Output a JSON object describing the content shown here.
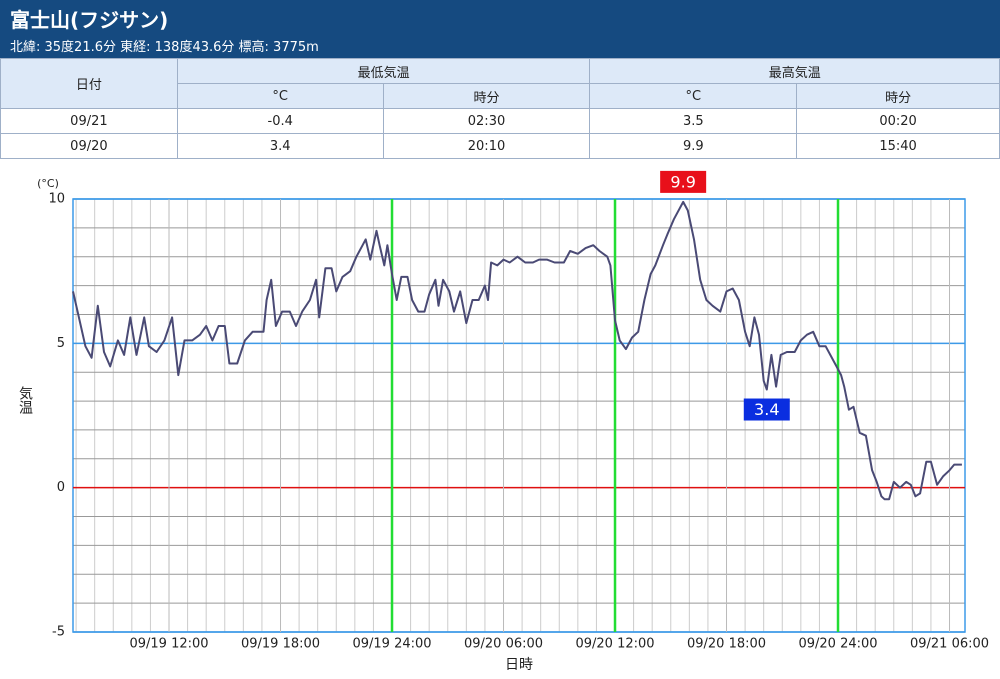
{
  "header": {
    "title": "富士山(フジサン)",
    "subtitle": "北緯: 35度21.6分 東経: 138度43.6分 標高: 3775m"
  },
  "table": {
    "headers": [
      "日付",
      "最低気温",
      "最高気温"
    ],
    "subheaders": [
      "°C",
      "時分",
      "°C",
      "時分"
    ],
    "rows": [
      [
        "09/21",
        -0.4,
        "02:30",
        3.5,
        "00:20"
      ],
      [
        "09/20",
        3.4,
        "20:10",
        9.9,
        "15:40"
      ]
    ]
  },
  "chart_data": {
    "type": "line",
    "y_unit": "(°C)",
    "ylabel": "気温",
    "xlabel": "日時",
    "color": "#4a4a75",
    "xlim": [
      "09/19 06:50",
      "09/21 06:50"
    ],
    "xticks": [
      "09/19 12:00",
      "09/19 18:00",
      "09/19 24:00",
      "09/20 06:00",
      "09/20 12:00",
      "09/20 18:00",
      "09/20 24:00",
      "09/21 06:00"
    ],
    "highlight_xticks": [
      2,
      4,
      6
    ],
    "highlight_color": "#22dd33",
    "ylim": [
      -5,
      10
    ],
    "yticks": [
      -5,
      0,
      5,
      10
    ],
    "major_grid_color": "#3d9ae8",
    "zero_color": "#e01010",
    "grid": true,
    "max_label": {
      "x": "09/20 15:40",
      "value": 9.9,
      "color": "#e8101a"
    },
    "min_label": {
      "x": "09/20 20:10",
      "value": 3.4,
      "color": "#0a2ee0"
    },
    "x": [
      "09/19 06:50",
      "09/19 07:05",
      "09/19 07:30",
      "09/19 07:50",
      "09/19 08:10",
      "09/19 08:30",
      "09/19 08:50",
      "09/19 09:15",
      "09/19 09:35",
      "09/19 09:55",
      "09/19 10:15",
      "09/19 10:40",
      "09/19 10:55",
      "09/19 11:20",
      "09/19 11:45",
      "09/19 12:10",
      "09/19 12:30",
      "09/19 12:50",
      "09/19 13:15",
      "09/19 13:40",
      "09/19 14:00",
      "09/19 14:20",
      "09/19 14:40",
      "09/19 15:00",
      "09/19 15:15",
      "09/19 15:40",
      "09/19 16:05",
      "09/19 16:30",
      "09/19 16:50",
      "09/19 17:05",
      "09/19 17:15",
      "09/19 17:30",
      "09/19 17:45",
      "09/19 18:05",
      "09/19 18:30",
      "09/19 18:50",
      "09/19 19:10",
      "09/19 19:35",
      "09/19 19:55",
      "09/19 20:05",
      "09/19 20:25",
      "09/19 20:45",
      "09/19 21:00",
      "09/19 21:20",
      "09/19 21:45",
      "09/19 22:05",
      "09/19 22:25",
      "09/19 22:35",
      "09/19 22:50",
      "09/19 23:10",
      "09/19 23:20",
      "09/19 23:35",
      "09/19 23:45",
      "09/20 00:00",
      "09/20 00:15",
      "09/20 00:30",
      "09/20 00:50",
      "09/20 01:05",
      "09/20 01:25",
      "09/20 01:45",
      "09/20 02:00",
      "09/20 02:20",
      "09/20 02:30",
      "09/20 02:45",
      "09/20 03:05",
      "09/20 03:20",
      "09/20 03:40",
      "09/20 04:00",
      "09/20 04:20",
      "09/20 04:40",
      "09/20 05:00",
      "09/20 05:10",
      "09/20 05:20",
      "09/20 05:40",
      "09/20 06:00",
      "09/20 06:20",
      "09/20 06:45",
      "09/20 07:10",
      "09/20 07:35",
      "09/20 07:55",
      "09/20 08:20",
      "09/20 08:45",
      "09/20 09:15",
      "09/20 09:35",
      "09/20 10:00",
      "09/20 10:25",
      "09/20 10:50",
      "09/20 11:10",
      "09/20 11:35",
      "09/20 11:45",
      "09/20 12:00",
      "09/20 12:15",
      "09/20 12:35",
      "09/20 12:55",
      "09/20 13:15",
      "09/20 13:35",
      "09/20 13:55",
      "09/20 14:10",
      "09/20 14:35",
      "09/20 14:50",
      "09/20 15:10",
      "09/20 15:40",
      "09/20 15:55",
      "09/20 16:15",
      "09/20 16:35",
      "09/20 16:55",
      "09/20 17:15",
      "09/20 17:40",
      "09/20 18:00",
      "09/20 18:20",
      "09/20 18:40",
      "09/20 19:00",
      "09/20 19:15",
      "09/20 19:30",
      "09/20 19:45",
      "09/20 20:00",
      "09/20 20:10",
      "09/20 20:25",
      "09/20 20:40",
      "09/20 20:55",
      "09/20 21:15",
      "09/20 21:40",
      "09/20 22:00",
      "09/20 22:20",
      "09/20 22:40",
      "09/20 23:00",
      "09/20 23:20",
      "09/20 23:35",
      "09/20 23:55",
      "09/21 00:10",
      "09/21 00:20",
      "09/21 00:35",
      "09/21 00:50",
      "09/21 01:10",
      "09/21 01:30",
      "09/21 01:50",
      "09/21 02:05",
      "09/21 02:20",
      "09/21 02:30",
      "09/21 02:45",
      "09/21 03:00",
      "09/21 03:20",
      "09/21 03:40",
      "09/21 03:55",
      "09/21 04:10",
      "09/21 04:25",
      "09/21 04:45",
      "09/21 05:00",
      "09/21 05:20",
      "09/21 05:40",
      "09/21 06:00",
      "09/21 06:15",
      "09/21 06:40"
    ],
    "values": [
      6.8,
      6.1,
      4.9,
      4.5,
      6.3,
      4.7,
      4.2,
      5.1,
      4.6,
      5.9,
      4.6,
      5.9,
      4.9,
      4.7,
      5.1,
      5.9,
      3.9,
      5.1,
      5.1,
      5.3,
      5.6,
      5.1,
      5.6,
      5.6,
      4.3,
      4.3,
      5.1,
      5.4,
      5.4,
      5.4,
      6.5,
      7.2,
      5.6,
      6.1,
      6.1,
      5.6,
      6.1,
      6.5,
      7.2,
      5.9,
      7.6,
      7.6,
      6.8,
      7.3,
      7.5,
      8.0,
      8.4,
      8.6,
      7.9,
      8.9,
      8.4,
      7.7,
      8.4,
      7.4,
      6.5,
      7.3,
      7.3,
      6.5,
      6.1,
      6.1,
      6.7,
      7.2,
      6.3,
      7.2,
      6.8,
      6.1,
      6.8,
      5.7,
      6.5,
      6.5,
      7.0,
      6.5,
      7.8,
      7.7,
      7.9,
      7.8,
      8.0,
      7.8,
      7.8,
      7.9,
      7.9,
      7.8,
      7.8,
      8.2,
      8.1,
      8.3,
      8.4,
      8.2,
      8.0,
      7.7,
      5.8,
      5.1,
      4.8,
      5.2,
      5.4,
      6.5,
      7.4,
      7.7,
      8.4,
      8.8,
      9.3,
      9.9,
      9.6,
      8.6,
      7.2,
      6.5,
      6.3,
      6.1,
      6.8,
      6.9,
      6.5,
      5.4,
      4.9,
      5.9,
      5.3,
      3.7,
      3.4,
      4.6,
      3.5,
      4.6,
      4.7,
      4.7,
      5.1,
      5.3,
      5.4,
      4.9,
      4.9,
      4.6,
      4.2,
      3.9,
      3.5,
      2.7,
      2.8,
      1.9,
      1.8,
      0.6,
      0.2,
      -0.3,
      -0.4,
      -0.4,
      0.2,
      0.0,
      0.2,
      0.1,
      -0.3,
      -0.2,
      0.9,
      0.9,
      0.1,
      0.4,
      0.6,
      0.8,
      0.8
    ]
  }
}
